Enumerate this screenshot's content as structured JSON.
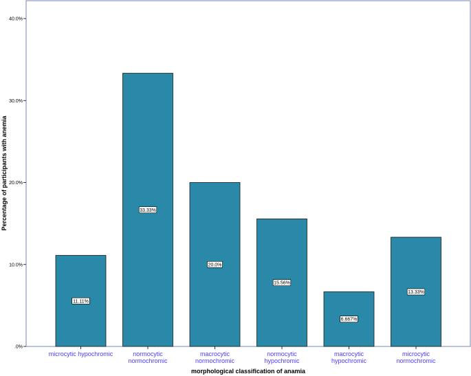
{
  "chart_data": {
    "type": "bar",
    "categories": [
      [
        "microcytic hypochromic"
      ],
      [
        "normocytic",
        "normochromic"
      ],
      [
        "macrocytic",
        "normochromic"
      ],
      [
        "normocytic",
        "hypochromic"
      ],
      [
        "macrocytic",
        "hypochromic"
      ],
      [
        "microcytic",
        "normochromic"
      ]
    ],
    "values": [
      11.11,
      33.33,
      20.0,
      15.56,
      6.667,
      13.33
    ],
    "value_labels": [
      "11.11%",
      "33.33%",
      "20.0%",
      "15.56%",
      "6.667%",
      "13.33%"
    ],
    "ylabel": "Percentage of participants with anemia",
    "xlabel": "morphological classification of anamia",
    "ylim": [
      0,
      40
    ],
    "yticks": [
      0,
      10,
      20,
      30,
      40
    ],
    "ytick_labels": [
      ".0%",
      "10.0%",
      "20.0%",
      "30.0%",
      "40.0%"
    ],
    "grid": false,
    "colors": {
      "bar_fill": "#2a89a8",
      "bar_stroke": "#1a1a1a",
      "frame": "#7a86b8",
      "category_text": "#4a3aff"
    }
  }
}
